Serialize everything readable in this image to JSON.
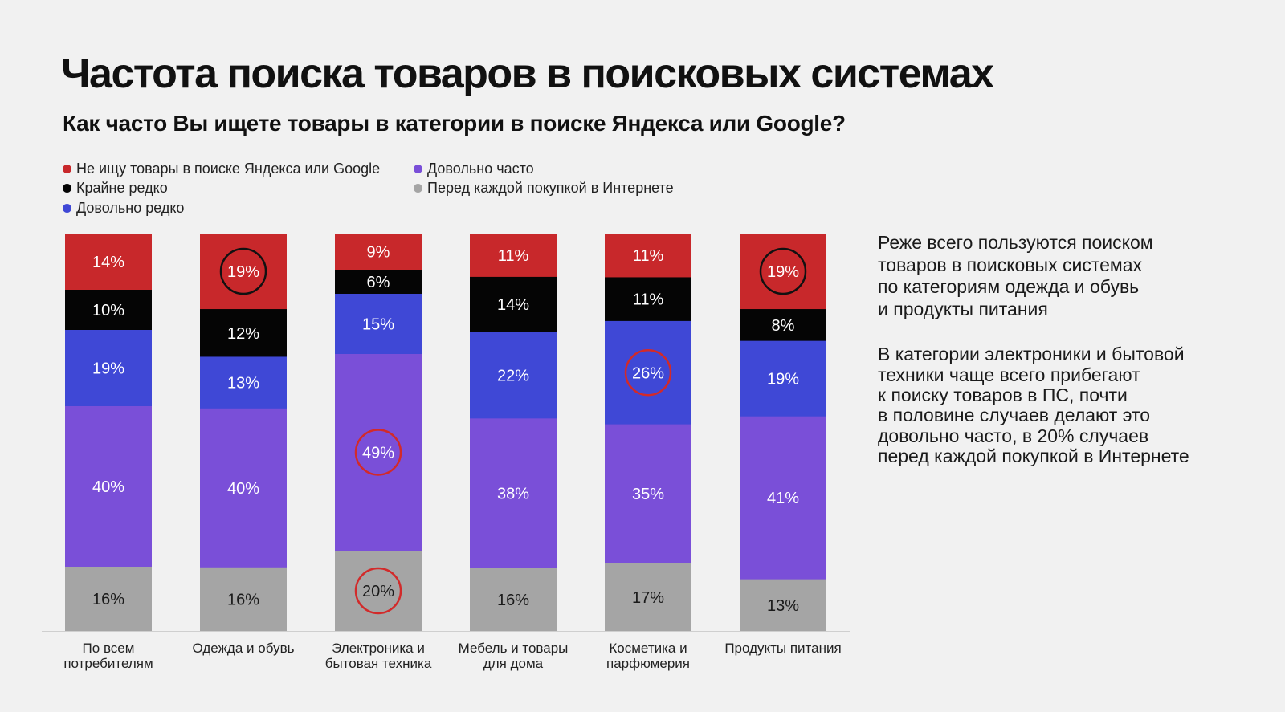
{
  "title": "Частота поиска товаров в поисковых системах",
  "subtitle": "Как часто Вы ищете товары в категории в поиске Яндекса или Google?",
  "legend": [
    {
      "label": "Не ищу товары в поиске Яндекса или Google",
      "color": "#c8282b"
    },
    {
      "label": "Крайне редко",
      "color": "#050505"
    },
    {
      "label": "Довольно редко",
      "color": "#3f48d6"
    },
    {
      "label": "Довольно часто",
      "color": "#7a4fd8"
    },
    {
      "label": "Перед каждой покупкой в Интернете",
      "color": "#a5a5a5"
    }
  ],
  "notes": [
    "Реже всего пользуются поиском\nтоваров в поисковых системах\nпо категориям одежда и обувь\nи продукты питания",
    "В категории электроники и бытовой\nтехники чаще всего прибегают\nк поиску товаров в ПС, почти\nв половине случаев делают это\nдовольно часто, в 20% случаев\nперед каждой покупкой в Интернете"
  ],
  "chart_data": {
    "type": "bar",
    "stacked": true,
    "unit": "%",
    "categories": [
      "По всем потребителям",
      "Одежда и обувь",
      "Электроника и бытовая техника",
      "Мебель и товары для дома",
      "Косметика и парфюмерия",
      "Продукты питания"
    ],
    "category_label_lines": [
      [
        "По всем",
        "потребителям"
      ],
      [
        "Одежда и обувь"
      ],
      [
        "Электроника и",
        "бытовая техника"
      ],
      [
        "Мебель и товары",
        "для дома"
      ],
      [
        "Косметика и",
        "парфюмерия"
      ],
      [
        "Продукты питания"
      ]
    ],
    "series": [
      {
        "name": "Не ищу товары в поиске Яндекса или Google",
        "color": "#c8282b",
        "values": [
          14,
          19,
          9,
          11,
          11,
          19
        ]
      },
      {
        "name": "Крайне редко",
        "color": "#050505",
        "values": [
          10,
          12,
          6,
          14,
          11,
          8
        ]
      },
      {
        "name": "Довольно редко",
        "color": "#3f48d6",
        "values": [
          19,
          13,
          15,
          22,
          26,
          19
        ]
      },
      {
        "name": "Довольно часто",
        "color": "#7a4fd8",
        "values": [
          40,
          40,
          49,
          38,
          35,
          41
        ]
      },
      {
        "name": "Перед каждой покупкой в Интернете",
        "color": "#a5a5a5",
        "values": [
          16,
          16,
          20,
          16,
          17,
          13
        ]
      }
    ],
    "highlighted": [
      {
        "series": 0,
        "category": 1
      },
      {
        "series": 0,
        "category": 5
      },
      {
        "series": 3,
        "category": 2
      },
      {
        "series": 4,
        "category": 2
      },
      {
        "series": 2,
        "category": 4
      }
    ],
    "highlight_color": "#d22a2a",
    "label_colors": {
      "light": "#ffffff",
      "dark": "#1a1a1a"
    },
    "legend_placement": "top-left",
    "grid": false
  }
}
